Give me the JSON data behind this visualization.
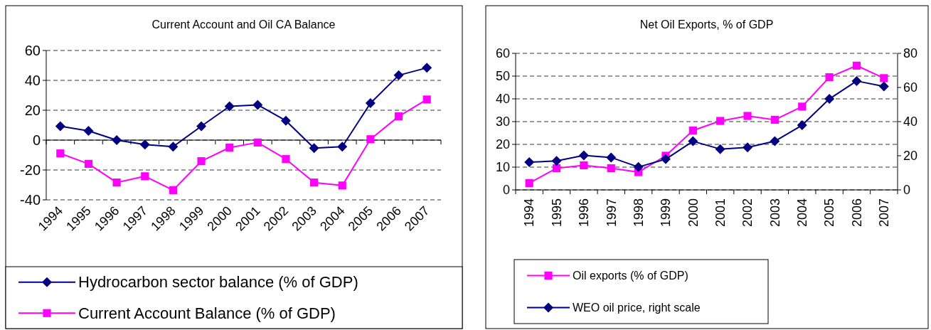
{
  "chart_data": [
    {
      "type": "line",
      "title": "Current Account and Oil CA Balance",
      "categories": [
        "1994",
        "1995",
        "1996",
        "1997",
        "1998",
        "1999",
        "2000",
        "2001",
        "2002",
        "2003",
        "2004",
        "2005",
        "2006",
        "2007"
      ],
      "series": [
        {
          "name": "Hydrocarbon sector balance (% of GDP)",
          "color": "#000080",
          "marker": "diamond",
          "values": [
            9.3,
            6.2,
            0,
            -3,
            -4.4,
            9.3,
            22.6,
            23.6,
            13,
            -5.4,
            -4.4,
            24.8,
            43.4,
            48.4
          ]
        },
        {
          "name": "Current Account Balance (% of GDP)",
          "color": "#ff00ff",
          "marker": "square",
          "values": [
            -8.9,
            -15.9,
            -28.4,
            -24.2,
            -33.5,
            -14.1,
            -5,
            -1.6,
            -12.7,
            -28.4,
            -30.4,
            0.6,
            15.9,
            27.2
          ]
        }
      ],
      "ylim": [
        -40,
        60
      ],
      "yticks": [
        -40,
        -20,
        0,
        20,
        40,
        60
      ],
      "grid": "y",
      "legend": "bottom"
    },
    {
      "type": "line",
      "title": "Net Oil Exports, % of GDP",
      "categories": [
        "1994",
        "1995",
        "1996",
        "1997",
        "1998",
        "1999",
        "2000",
        "2001",
        "2002",
        "2003",
        "2004",
        "2005",
        "2006",
        "2007"
      ],
      "series": [
        {
          "name": "Oil exports (% of GDP)",
          "color": "#ff00ff",
          "marker": "square",
          "values": [
            3,
            9.5,
            10.8,
            9.5,
            7.8,
            15,
            26.1,
            30.3,
            32.5,
            30.8,
            36.6,
            49.5,
            54.6,
            49.1
          ]
        },
        {
          "name": "WEO oil price, right scale",
          "color": "#000080",
          "marker": "diamond",
          "axis": "y2",
          "values": [
            16.2,
            17,
            20.2,
            19,
            13.4,
            18,
            28.5,
            23.9,
            24.9,
            28.5,
            37.9,
            53.3,
            63.8,
            60.6
          ]
        }
      ],
      "ylim": [
        0,
        60
      ],
      "yticks": [
        0,
        10,
        20,
        30,
        40,
        50,
        60
      ],
      "y2lim": [
        0,
        80
      ],
      "y2ticks": [
        0,
        20,
        40,
        60,
        80
      ],
      "grid": "y",
      "legend": "bottom"
    }
  ]
}
